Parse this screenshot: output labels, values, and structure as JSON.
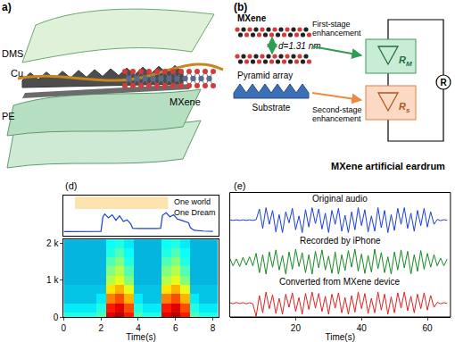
{
  "figure": {
    "panel_a": {
      "label": "a)",
      "layers": [
        "DMS",
        "Cu",
        "PE"
      ],
      "inset": "MXene"
    },
    "panel_b": {
      "label": "(b)",
      "layer_top": "MXene",
      "spacing": "d=1.31 nm",
      "layer_bottom": "Pyramid array",
      "base": "Substrate",
      "stages": [
        {
          "text": [
            "First-stage",
            "enhancement"
          ],
          "resistor": {
            "symbol": "R",
            "subscript": "M"
          },
          "color": "#c9ecd6"
        },
        {
          "text": [
            "Second-stage",
            "enhancement"
          ],
          "resistor": {
            "symbol": "R",
            "subscript": "s"
          },
          "color": "#fbd9c4"
        }
      ],
      "total": "R",
      "caption": "MXene artificial eardrum"
    }
  },
  "chart_data": [
    {
      "label": "(d)",
      "type": "line",
      "x": [
        0,
        1,
        2,
        2.1,
        2.2,
        2.4,
        2.6,
        2.8,
        3.0,
        3.2,
        3.4,
        3.6,
        3.7,
        4.0,
        4.5,
        5.0,
        5.2,
        5.3,
        5.5,
        5.7,
        5.9,
        6.1,
        6.3,
        6.5,
        6.7,
        6.8,
        7.0,
        7.5,
        8
      ],
      "values": [
        0.15,
        0.15,
        0.16,
        0.72,
        0.85,
        0.7,
        0.82,
        0.6,
        0.78,
        0.55,
        0.62,
        0.45,
        0.28,
        0.27,
        0.26,
        0.27,
        0.28,
        0.8,
        0.9,
        0.74,
        0.82,
        0.65,
        0.6,
        0.55,
        0.5,
        0.3,
        0.2,
        0.17,
        0.16
      ],
      "color": "#1a3fd8",
      "xlim": [
        0,
        8.3
      ],
      "ylim": [
        0,
        1.6
      ],
      "tick_labels": false,
      "annotation": [
        "One world",
        "One Dream"
      ]
    },
    {
      "type": "heatmap",
      "x": [
        0,
        0.5,
        1,
        1.5,
        2,
        2.5,
        3,
        3.5,
        4,
        4.5,
        5,
        5.5,
        6,
        6.5,
        7,
        7.5,
        8
      ],
      "y": [
        0,
        250,
        500,
        750,
        1000,
        1250,
        1500,
        1750,
        2000
      ],
      "cells": [
        [
          0.4,
          0.4,
          0.4,
          0.4,
          0.45,
          0.9,
          0.95,
          0.85,
          0.45,
          0.4,
          0.4,
          0.9,
          0.95,
          0.85,
          0.45,
          0.4,
          0.4
        ],
        [
          0.35,
          0.35,
          0.35,
          0.35,
          0.4,
          0.85,
          0.9,
          0.8,
          0.4,
          0.35,
          0.35,
          0.85,
          0.9,
          0.8,
          0.4,
          0.35,
          0.35
        ],
        [
          0.3,
          0.3,
          0.3,
          0.3,
          0.35,
          0.75,
          0.8,
          0.7,
          0.35,
          0.3,
          0.3,
          0.75,
          0.8,
          0.7,
          0.35,
          0.3,
          0.3
        ],
        [
          0.3,
          0.3,
          0.3,
          0.3,
          0.3,
          0.65,
          0.7,
          0.6,
          0.3,
          0.3,
          0.3,
          0.65,
          0.7,
          0.6,
          0.3,
          0.3,
          0.3
        ],
        [
          0.28,
          0.28,
          0.28,
          0.28,
          0.28,
          0.55,
          0.6,
          0.5,
          0.28,
          0.28,
          0.28,
          0.55,
          0.6,
          0.5,
          0.28,
          0.28,
          0.28
        ],
        [
          0.28,
          0.28,
          0.28,
          0.28,
          0.28,
          0.5,
          0.55,
          0.45,
          0.28,
          0.28,
          0.28,
          0.5,
          0.55,
          0.45,
          0.28,
          0.28,
          0.28
        ],
        [
          0.28,
          0.28,
          0.28,
          0.28,
          0.28,
          0.45,
          0.5,
          0.4,
          0.28,
          0.28,
          0.28,
          0.45,
          0.5,
          0.4,
          0.28,
          0.28,
          0.28
        ],
        [
          0.28,
          0.28,
          0.28,
          0.28,
          0.28,
          0.4,
          0.45,
          0.38,
          0.28,
          0.28,
          0.28,
          0.4,
          0.45,
          0.38,
          0.28,
          0.28,
          0.28
        ],
        [
          0.28,
          0.28,
          0.28,
          0.28,
          0.28,
          0.38,
          0.4,
          0.35,
          0.28,
          0.28,
          0.28,
          0.38,
          0.4,
          0.35,
          0.28,
          0.28,
          0.28
        ]
      ],
      "zlim": [
        0,
        1
      ],
      "xlim": [
        0,
        8.3
      ],
      "ylim": [
        0,
        2100
      ],
      "xticks": [
        0,
        2,
        4,
        6,
        8
      ],
      "yticks": [
        0,
        {
          "value": 1000,
          "label": "1 k"
        },
        {
          "value": 2000,
          "label": "2 k"
        }
      ],
      "x_label": "Time(s)"
    },
    {
      "label": "(e)",
      "type": "line",
      "x": [
        0,
        1,
        2,
        3,
        4,
        5,
        6,
        7,
        8,
        9,
        10,
        11,
        12,
        13,
        14,
        15,
        16,
        17,
        18,
        19,
        20,
        21,
        22,
        23,
        24,
        25,
        26,
        27,
        28,
        29,
        30,
        31,
        32,
        33,
        34,
        35,
        36,
        37,
        38,
        39,
        40,
        41,
        42,
        43,
        44,
        45,
        46,
        47,
        48,
        49,
        50,
        51,
        52,
        53,
        54,
        55,
        56,
        57,
        58,
        59,
        60,
        61,
        62,
        63,
        64,
        65,
        66
      ],
      "series": [
        {
          "name": "Original audio",
          "color": "#1a3fd8",
          "values": [
            0.02,
            -0.02,
            0.02,
            -0.02,
            0.02,
            -0.02,
            0.02,
            -0.02,
            0.03,
            0.8,
            -0.6,
            0.9,
            -0.3,
            0.7,
            -0.85,
            0.4,
            -0.9,
            0.6,
            -0.2,
            0.85,
            -0.7,
            0.3,
            -0.9,
            0.75,
            -0.5,
            0.9,
            -0.25,
            0.8,
            -0.65,
            0.5,
            -0.9,
            0.7,
            -0.3,
            0.85,
            -0.8,
            0.35,
            -0.9,
            0.6,
            -0.7,
            0.9,
            -0.4,
            0.75,
            -0.85,
            0.3,
            -0.8,
            0.9,
            -0.55,
            0.7,
            -0.9,
            0.4,
            -0.75,
            0.85,
            -0.3,
            0.9,
            -0.6,
            0.5,
            -0.8,
            0.7,
            -0.4,
            0.85,
            -0.5,
            0.6,
            -0.3,
            0.05,
            -0.04,
            0.03,
            -0.02
          ]
        },
        {
          "name": "Recorded by iPhone",
          "color": "#178a24",
          "values": [
            0.25,
            -0.3,
            0.2,
            -0.35,
            0.3,
            -0.25,
            0.35,
            -0.3,
            0.6,
            -0.8,
            0.5,
            -0.9,
            0.7,
            -0.4,
            0.85,
            -0.6,
            0.45,
            -0.9,
            0.7,
            -0.55,
            0.9,
            -0.35,
            0.65,
            -0.8,
            0.5,
            -0.9,
            0.75,
            -0.45,
            0.85,
            -0.6,
            0.4,
            -0.85,
            0.7,
            -0.9,
            0.5,
            -0.65,
            0.8,
            -0.4,
            0.9,
            -0.7,
            0.55,
            -0.85,
            0.45,
            -0.75,
            0.9,
            -0.5,
            0.65,
            -0.8,
            0.35,
            -0.9,
            0.7,
            -0.6,
            0.85,
            -0.45,
            0.75,
            -0.9,
            0.5,
            -0.7,
            0.8,
            -0.55,
            0.6,
            -0.4,
            0.5,
            -0.3,
            0.25,
            -0.3,
            0.2
          ]
        },
        {
          "name": "Converted from MXene device",
          "color": "#e02020",
          "values": [
            0.04,
            -0.04,
            0.05,
            -0.03,
            0.04,
            -0.05,
            0.03,
            -0.04,
            -0.95,
            0.55,
            -0.7,
            0.8,
            -0.4,
            0.6,
            -0.75,
            0.35,
            -0.8,
            0.65,
            -0.3,
            0.75,
            -0.6,
            0.4,
            -0.8,
            0.7,
            -0.45,
            0.8,
            -0.35,
            0.7,
            -0.6,
            0.5,
            -0.8,
            0.65,
            -0.35,
            0.75,
            -0.7,
            0.4,
            -0.8,
            0.55,
            -0.65,
            0.8,
            -0.4,
            0.7,
            -0.75,
            0.35,
            -0.7,
            0.8,
            -0.5,
            0.65,
            -0.8,
            0.45,
            -0.7,
            0.75,
            -0.35,
            0.8,
            -0.55,
            0.5,
            -0.7,
            0.65,
            -0.4,
            0.75,
            -0.5,
            0.55,
            -0.3,
            0.06,
            -0.05,
            0.04,
            -0.03
          ]
        }
      ],
      "xlim": [
        0,
        67
      ],
      "ylim": [
        -1,
        1
      ],
      "xticks": [
        20,
        40,
        60
      ],
      "x_label": "Time(s)",
      "tick_labels": "x"
    }
  ]
}
